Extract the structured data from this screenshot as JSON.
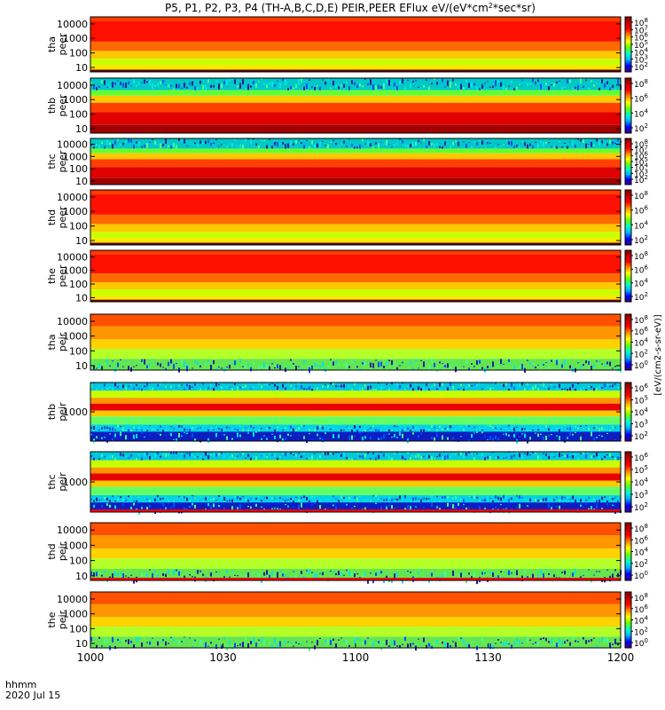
{
  "chart_data": {
    "type": "heatmap",
    "title_prefix": "P5, P1, P2, P3, P4 (TH-A,B,C,D,E) PEIR,PEER EFlux eV/(eV*cm",
    "title_sup": "2",
    "title_suffix": "*sec*sr)",
    "x_axis": {
      "label_line1": "hhmm",
      "label_line2": "2020 Jul 15",
      "tick_labels": [
        "1000",
        "1030",
        "1100",
        "1130",
        "1200"
      ],
      "range_minutes": [
        0,
        120
      ],
      "tick_minutes": [
        0,
        30,
        60,
        90,
        120
      ]
    },
    "colorbar": {
      "label": "[eV/(cm2-s-sr-eV)]",
      "tick_base": "10",
      "colors": [
        "#3a0080",
        "#0000ff",
        "#00b4ff",
        "#00ffc8",
        "#64ff00",
        "#ffff00",
        "#ff8c00",
        "#ff0000",
        "#c00000",
        "#800000"
      ]
    },
    "panels": [
      {
        "probe": "tha",
        "instrument": "peer",
        "yticks": [
          "10000",
          "1000",
          "100",
          "10"
        ],
        "ytick_values": [
          10000,
          1000,
          100,
          10
        ],
        "yrange": [
          5,
          30000
        ],
        "cbar_exps": [
          "8",
          "7",
          "6",
          "5",
          "4",
          "3",
          "2"
        ]
      },
      {
        "probe": "thb",
        "instrument": "peer",
        "yticks": [
          "10000",
          "1000",
          "100",
          "10"
        ],
        "ytick_values": [
          10000,
          1000,
          100,
          10
        ],
        "yrange": [
          5,
          30000
        ],
        "cbar_exps": [
          "8",
          "6",
          "4",
          "2"
        ]
      },
      {
        "probe": "thc",
        "instrument": "peer",
        "yticks": [
          "10000",
          "1000",
          "100",
          "10"
        ],
        "ytick_values": [
          10000,
          1000,
          100,
          10
        ],
        "yrange": [
          5,
          30000
        ],
        "cbar_exps": [
          "8",
          "7",
          "6",
          "5",
          "4",
          "3",
          "2"
        ]
      },
      {
        "probe": "thd",
        "instrument": "peer",
        "yticks": [
          "10000",
          "1000",
          "100",
          "10"
        ],
        "ytick_values": [
          10000,
          1000,
          100,
          10
        ],
        "yrange": [
          5,
          30000
        ],
        "cbar_exps": [
          "8",
          "6",
          "4",
          "2"
        ]
      },
      {
        "probe": "the",
        "instrument": "peer",
        "yticks": [
          "10000",
          "1000",
          "100",
          "10"
        ],
        "ytick_values": [
          10000,
          1000,
          100,
          10
        ],
        "yrange": [
          5,
          30000
        ],
        "cbar_exps": [
          "8",
          "6",
          "4",
          "2"
        ]
      },
      {
        "probe": "tha",
        "instrument": "peir",
        "yticks": [
          "10000",
          "1000",
          "100",
          "10"
        ],
        "ytick_values": [
          10000,
          1000,
          100,
          10
        ],
        "yrange": [
          5,
          30000
        ],
        "cbar_exps": [
          "8",
          "6",
          "4",
          "2",
          "0"
        ]
      },
      {
        "probe": "thb",
        "instrument": "peir",
        "yticks": [
          "1000"
        ],
        "ytick_values": [
          1000
        ],
        "yrange": [
          50,
          20000
        ],
        "cbar_exps": [
          "6",
          "5",
          "4",
          "3",
          "2"
        ]
      },
      {
        "probe": "thc",
        "instrument": "peir",
        "yticks": [
          "1000"
        ],
        "ytick_values": [
          1000
        ],
        "yrange": [
          50,
          20000
        ],
        "cbar_exps": [
          "6",
          "5",
          "4",
          "3",
          "2"
        ]
      },
      {
        "probe": "thd",
        "instrument": "peir",
        "yticks": [
          "10000",
          "1000",
          "100",
          "10"
        ],
        "ytick_values": [
          10000,
          1000,
          100,
          10
        ],
        "yrange": [
          5,
          30000
        ],
        "cbar_exps": [
          "8",
          "6",
          "4",
          "2",
          "0"
        ]
      },
      {
        "probe": "the",
        "instrument": "peir",
        "yticks": [
          "10000",
          "1000",
          "100",
          "10"
        ],
        "ytick_values": [
          10000,
          1000,
          100,
          10
        ],
        "yrange": [
          5,
          30000
        ],
        "cbar_exps": [
          "8",
          "6",
          "4",
          "2",
          "0"
        ]
      }
    ]
  }
}
